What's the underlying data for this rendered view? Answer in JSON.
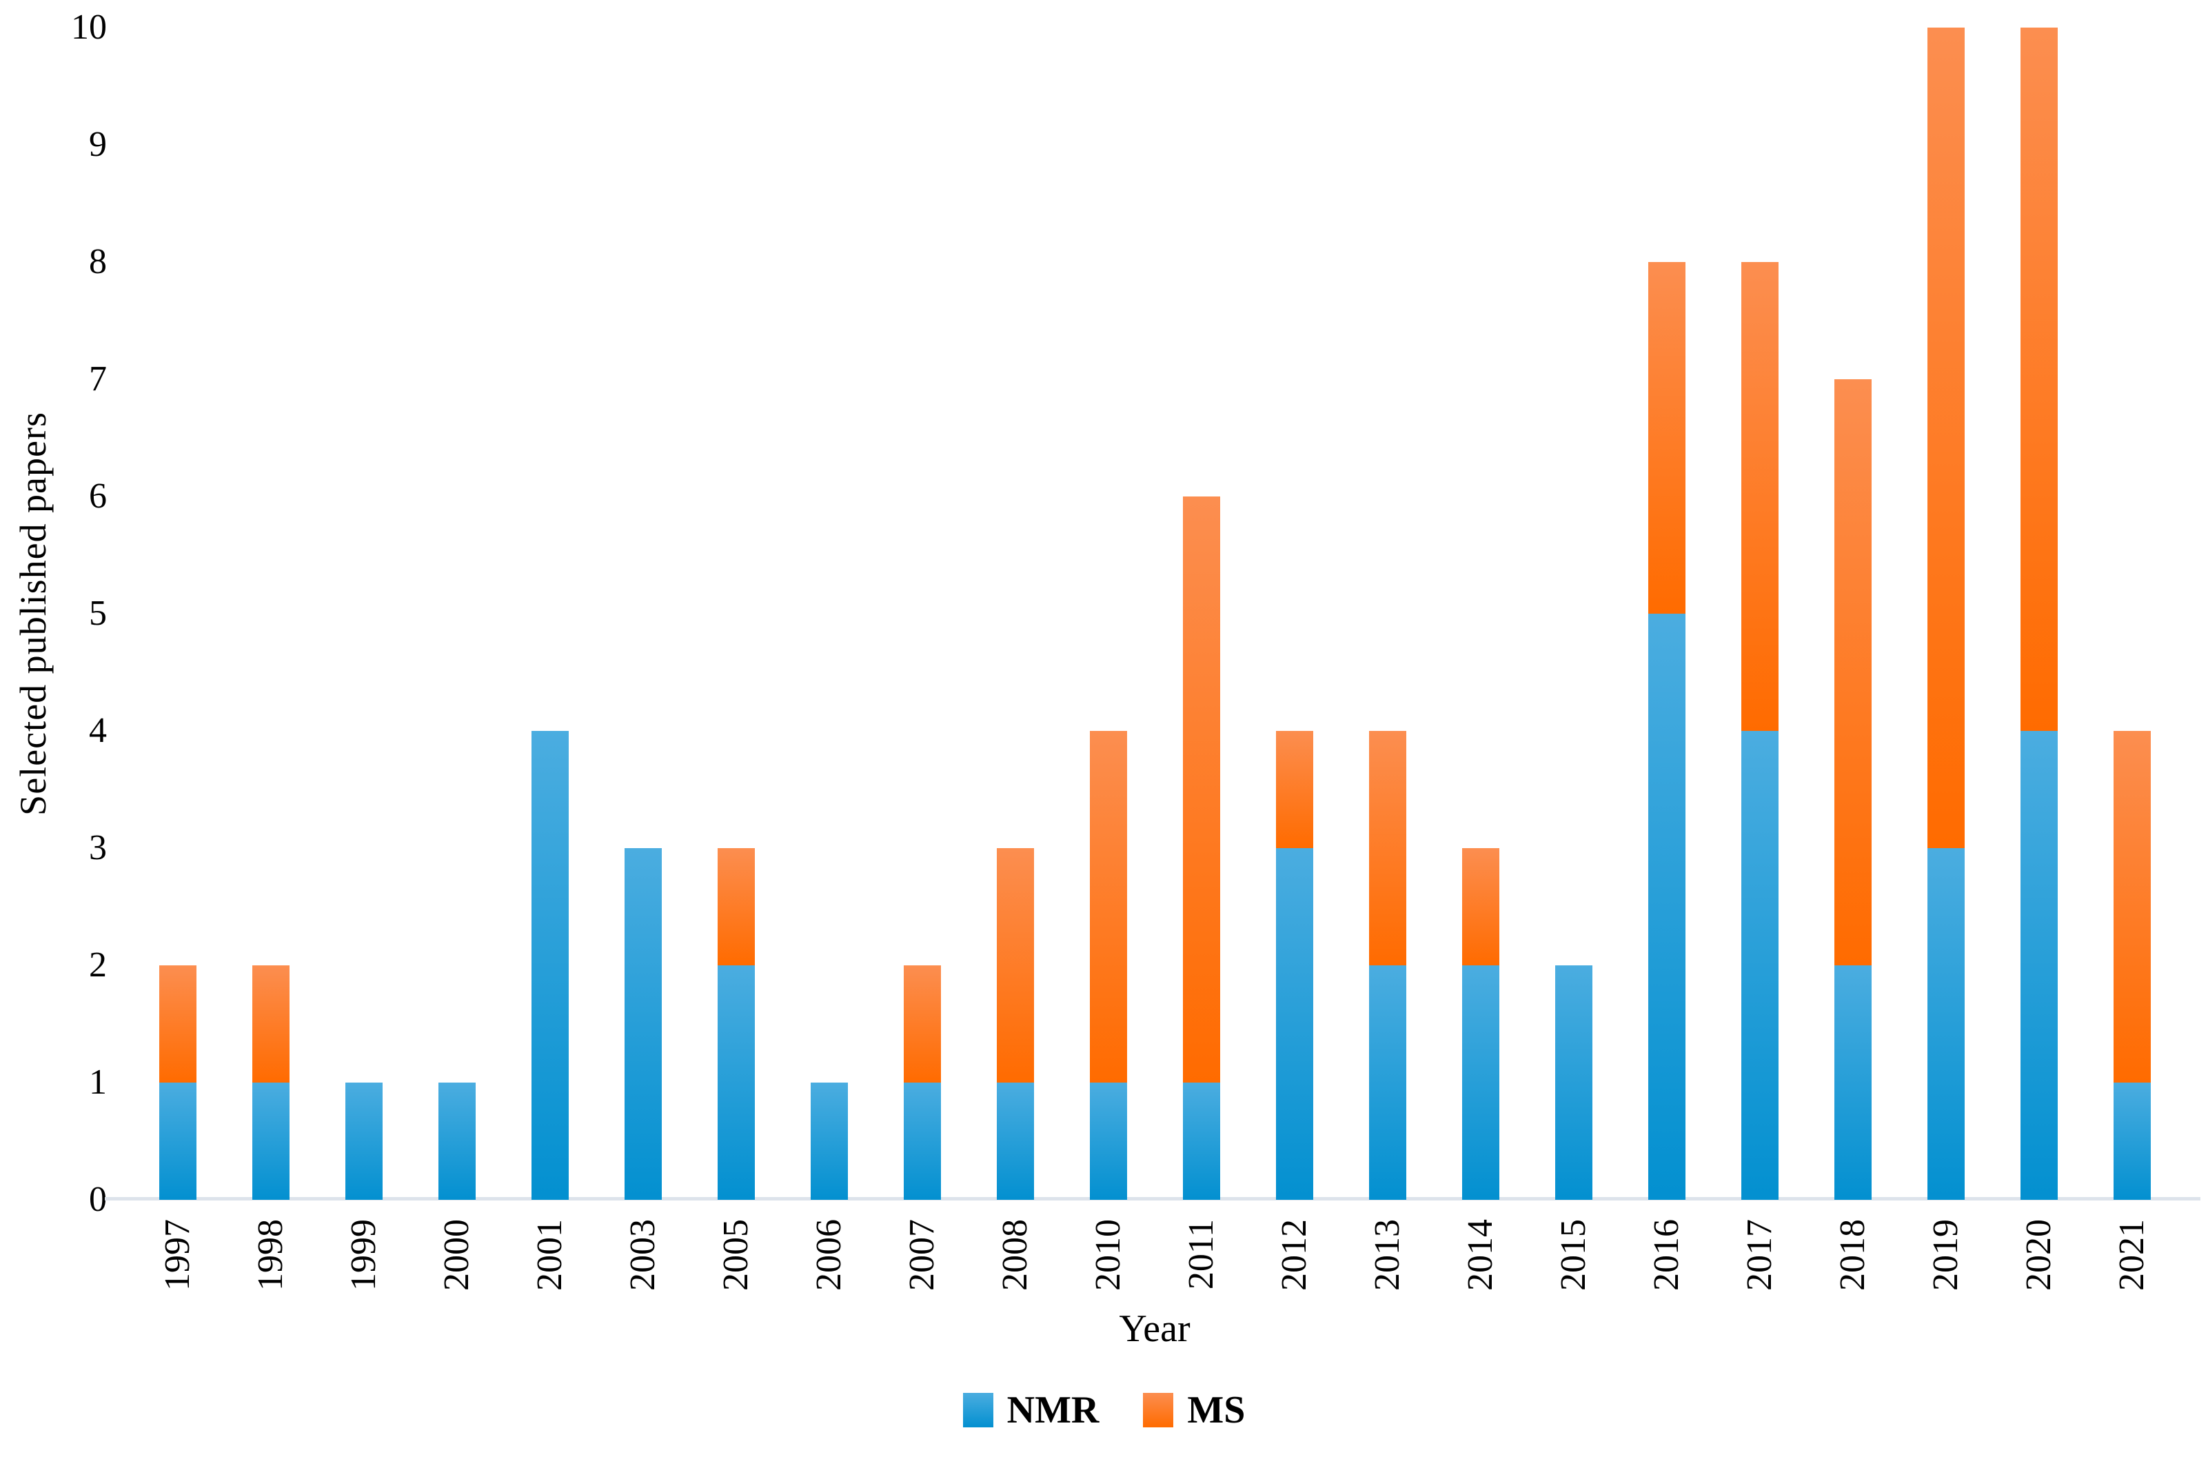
{
  "figure": {
    "y_axis_title": "Selected published papers",
    "x_axis_title": "Year"
  },
  "chart_data": {
    "type": "bar",
    "stacked": true,
    "title": "",
    "xlabel": "Year",
    "ylabel": "Selected published papers",
    "ylim": [
      0,
      10
    ],
    "yticks": [
      0,
      1,
      2,
      3,
      4,
      5,
      6,
      7,
      8,
      9,
      10
    ],
    "grid": false,
    "legend_position": "bottom",
    "categories": [
      "1997",
      "1998",
      "1999",
      "2000",
      "2001",
      "2003",
      "2005",
      "2006",
      "2007",
      "2008",
      "2010",
      "2011",
      "2012",
      "2013",
      "2014",
      "2015",
      "2016",
      "2017",
      "2018",
      "2019",
      "2020",
      "2021"
    ],
    "series": [
      {
        "name": "NMR",
        "values": [
          1,
          1,
          1,
          1,
          4,
          3,
          2,
          1,
          1,
          1,
          1,
          1,
          3,
          2,
          2,
          2,
          5,
          4,
          2,
          3,
          4,
          1
        ]
      },
      {
        "name": "MS",
        "values": [
          1,
          1,
          0,
          0,
          0,
          0,
          1,
          0,
          1,
          2,
          3,
          5,
          1,
          2,
          1,
          0,
          3,
          4,
          5,
          7,
          6,
          3
        ]
      }
    ],
    "colors": {
      "NMR": {
        "top": "#4badе0",
        "bottom": "#0390d0"
      },
      "MS": {
        "top": "#fc8e50",
        "bottom": "#ff6b00"
      }
    },
    "color_fallback": {
      "NMR": {
        "top": "#4bade0",
        "bottom": "#0390d0"
      },
      "MS": {
        "top": "#fc8e50",
        "bottom": "#ff6b00"
      }
    },
    "axis_line_color": "#dde3eb"
  }
}
